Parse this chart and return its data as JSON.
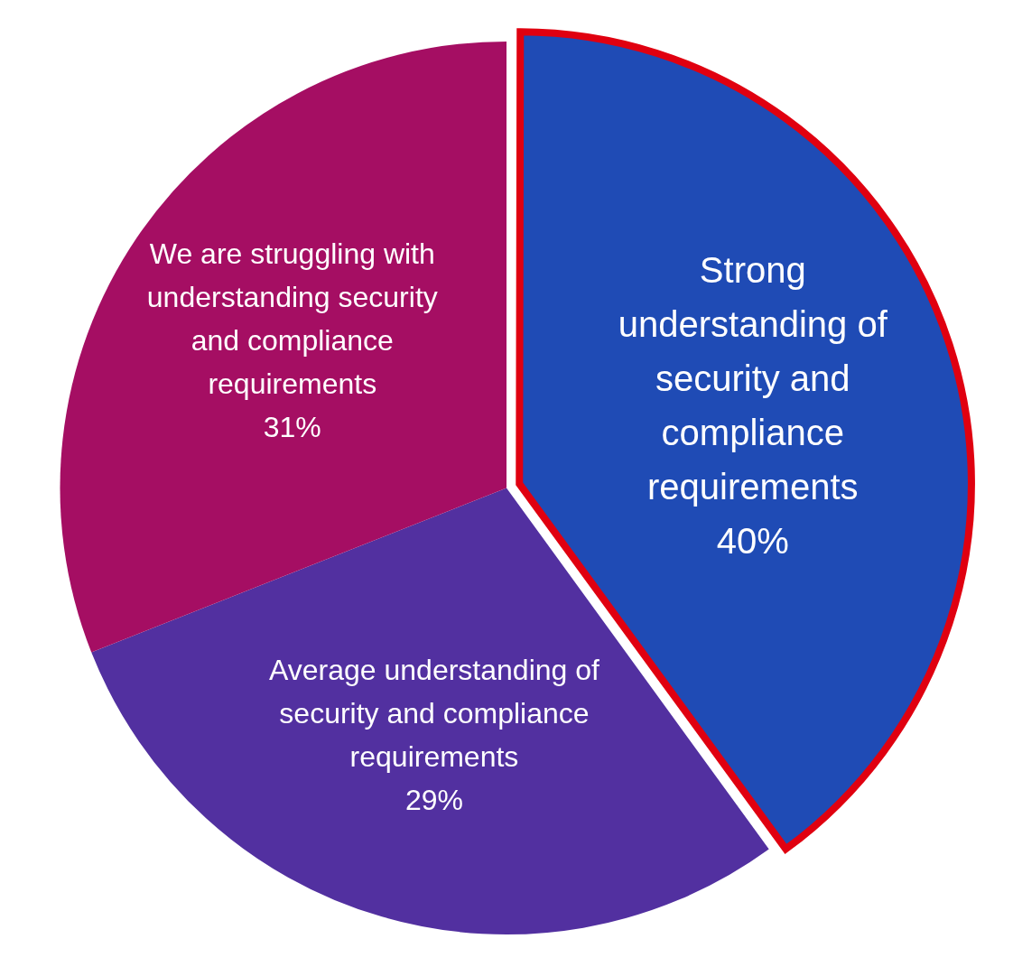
{
  "chart_data": {
    "type": "pie",
    "categories": [
      "Strong understanding of security and compliance requirements",
      "Average understanding of security and compliance requirements",
      "We are struggling with understanding security and compliance requirements"
    ],
    "values": [
      40,
      29,
      31
    ],
    "colors": [
      "#1f4bb5",
      "#5230a0",
      "#a50e63"
    ],
    "value_labels": [
      "40%",
      "29%",
      "31%"
    ],
    "legend": false
  }
}
